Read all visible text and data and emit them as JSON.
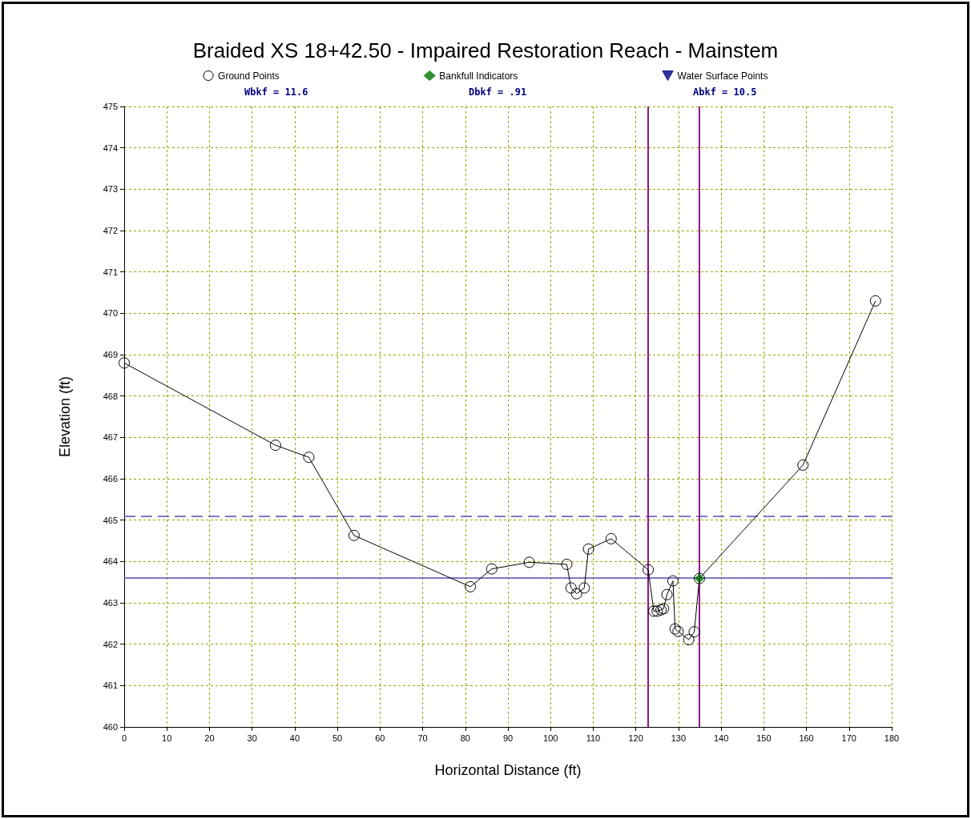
{
  "chart_data": {
    "type": "line",
    "title": "Braided XS 18+42.50 - Impaired Restoration Reach - Mainstem",
    "xlabel": "Horizontal Distance (ft)",
    "ylabel": "Elevation (ft)",
    "annotations": [
      "Wbkf = 11.6",
      "Dbkf = .91",
      "Abkf = 10.5"
    ],
    "series": [
      {
        "name": "Ground Points",
        "color": "#000000",
        "marker": "circle",
        "x": [
          0,
          35.5,
          43.3,
          53.9,
          81.2,
          86.2,
          95.0,
          103.8,
          104.8,
          106.1,
          107.9,
          108.9,
          114.2,
          122.9,
          124.2,
          125.0,
          125.9,
          126.5,
          127.3,
          128.7,
          129.2,
          129.9,
          132.4,
          133.7,
          134.9,
          159.2,
          176.2
        ],
        "values": [
          468.8,
          466.81,
          466.52,
          464.63,
          463.39,
          463.82,
          463.98,
          463.93,
          463.36,
          463.22,
          463.36,
          464.3,
          464.55,
          463.8,
          462.8,
          462.8,
          462.83,
          462.86,
          463.2,
          463.53,
          462.37,
          462.31,
          462.11,
          462.3,
          463.59,
          466.33,
          470.3
        ]
      },
      {
        "name": "Bankfull Indicators",
        "type": "scatter",
        "color": "#007700",
        "marker": "diamond",
        "x": [
          134.9
        ],
        "values": [
          463.59
        ]
      },
      {
        "name": "Water Surface Points",
        "type": "scatter",
        "color": "#000080",
        "marker": "triangle"
      }
    ],
    "ref_lines": [
      {
        "axis": "y",
        "value": 463.6,
        "color": "#5050b0",
        "line_style": "solid"
      },
      {
        "axis": "y",
        "value": 465.1,
        "color": "#5050b0",
        "line_style": "dashed"
      },
      {
        "axis": "x",
        "value": 122.9,
        "color": "#8b1a8b",
        "line_style": "solid"
      },
      {
        "axis": "x",
        "value": 134.9,
        "color": "#8b1a8b",
        "line_style": "solid"
      }
    ],
    "xlim": [
      0,
      180
    ],
    "xticks": [
      0,
      10,
      20,
      30,
      40,
      50,
      60,
      70,
      80,
      90,
      100,
      110,
      120,
      130,
      140,
      150,
      160,
      170,
      180
    ],
    "ylim": [
      460,
      475
    ],
    "yticks": [
      460,
      461,
      462,
      463,
      464,
      465,
      466,
      467,
      468,
      469,
      470,
      471,
      472,
      473,
      474,
      475
    ],
    "grid": true,
    "legend": "top"
  }
}
